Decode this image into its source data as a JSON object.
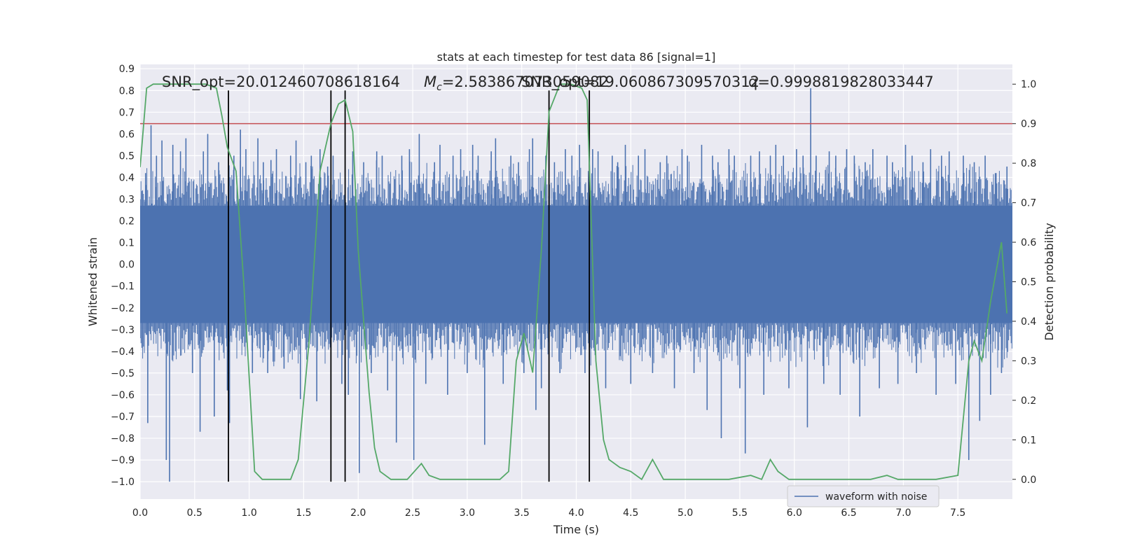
{
  "chart_data": {
    "type": "line",
    "title": "stats at each timestep for test data 86 [signal=1]",
    "xlabel": "Time (s)",
    "ylabel_left": "Whitened strain",
    "ylabel_right": "Detection probability",
    "xlim": [
      0,
      8
    ],
    "ylim_left": [
      -1.08,
      0.92
    ],
    "ylim_right": [
      -0.05,
      1.05
    ],
    "x_ticks": [
      0.0,
      0.5,
      1.0,
      1.5,
      2.0,
      2.5,
      3.0,
      3.5,
      4.0,
      4.5,
      5.0,
      5.5,
      6.0,
      6.5,
      7.0,
      7.5
    ],
    "x_tick_labels": [
      "0.0",
      "0.5",
      "1.0",
      "1.5",
      "2.0",
      "2.5",
      "3.0",
      "3.5",
      "4.0",
      "4.5",
      "5.0",
      "5.5",
      "6.0",
      "6.5",
      "7.0",
      "7.5"
    ],
    "y_left_ticks": [
      0.9,
      0.8,
      0.7,
      0.6,
      0.5,
      0.4,
      0.3,
      0.2,
      0.1,
      0.0,
      -0.1,
      -0.2,
      -0.3,
      -0.4,
      -0.5,
      -0.6,
      -0.7,
      -0.8,
      -0.9,
      -1.0
    ],
    "y_left_tick_labels": [
      "0.9",
      "0.8",
      "0.7",
      "0.6",
      "0.5",
      "0.4",
      "0.3",
      "0.2",
      "0.1",
      "0.0",
      "−0.1",
      "−0.2",
      "−0.3",
      "−0.4",
      "−0.5",
      "−0.6",
      "−0.7",
      "−0.8",
      "−0.9",
      "−1.0"
    ],
    "y_right_ticks": [
      1.0,
      0.9,
      0.8,
      0.7,
      0.6,
      0.5,
      0.4,
      0.3,
      0.2,
      0.1,
      0.0
    ],
    "y_right_tick_labels": [
      "1.0",
      "0.9",
      "0.8",
      "0.7",
      "0.6",
      "0.5",
      "0.4",
      "0.3",
      "0.2",
      "0.1",
      "0.0"
    ],
    "annotations": {
      "snr_opt": "SNR_opt=20.012460708618164",
      "mc": "=2.583867073059082",
      "mc_symbol": "M",
      "mc_subscript": "c",
      "snr_opt2": "SNR_opt=19.060867309570312",
      "q": "q=0.9998819828033447"
    },
    "threshold": {
      "value": 0.9,
      "axis": "right",
      "color": "#c44e52"
    },
    "vertical_lines_x": [
      0.81,
      1.75,
      1.88,
      3.75,
      4.12
    ],
    "waveform": {
      "name": "waveform with noise",
      "color": "#4c72b0",
      "core_band": [
        -0.27,
        0.27
      ],
      "typical_envelope": [
        -0.45,
        0.45
      ],
      "spikes": [
        [
          0.05,
          0.42
        ],
        [
          0.07,
          -0.73
        ],
        [
          0.1,
          0.64
        ],
        [
          0.15,
          0.5
        ],
        [
          0.2,
          0.57
        ],
        [
          0.24,
          -0.9
        ],
        [
          0.27,
          -1.0
        ],
        [
          0.3,
          0.55
        ],
        [
          0.37,
          0.52
        ],
        [
          0.42,
          0.58
        ],
        [
          0.48,
          -0.5
        ],
        [
          0.55,
          -0.77
        ],
        [
          0.58,
          0.52
        ],
        [
          0.62,
          0.6
        ],
        [
          0.68,
          -0.7
        ],
        [
          0.72,
          0.47
        ],
        [
          0.8,
          -0.58
        ],
        [
          0.82,
          -0.73
        ],
        [
          0.86,
          0.5
        ],
        [
          0.92,
          0.62
        ],
        [
          0.97,
          0.53
        ],
        [
          1.03,
          -0.5
        ],
        [
          1.08,
          0.58
        ],
        [
          1.13,
          0.47
        ],
        [
          1.17,
          -0.5
        ],
        [
          1.2,
          0.48
        ],
        [
          1.25,
          0.53
        ],
        [
          1.32,
          -0.48
        ],
        [
          1.38,
          0.5
        ],
        [
          1.43,
          0.57
        ],
        [
          1.47,
          -0.62
        ],
        [
          1.52,
          0.47
        ],
        [
          1.57,
          0.5
        ],
        [
          1.62,
          -0.63
        ],
        [
          1.65,
          0.53
        ],
        [
          1.72,
          0.45
        ],
        [
          1.77,
          0.5
        ],
        [
          1.85,
          -0.55
        ],
        [
          1.91,
          -0.6
        ],
        [
          1.95,
          0.52
        ],
        [
          2.01,
          -0.96
        ],
        [
          2.05,
          0.47
        ],
        [
          2.12,
          -0.5
        ],
        [
          2.17,
          0.52
        ],
        [
          2.22,
          0.5
        ],
        [
          2.27,
          -0.58
        ],
        [
          2.35,
          -0.82
        ],
        [
          2.4,
          0.5
        ],
        [
          2.47,
          0.53
        ],
        [
          2.51,
          -0.9
        ],
        [
          2.56,
          0.6
        ],
        [
          2.62,
          -0.55
        ],
        [
          2.7,
          0.47
        ],
        [
          2.75,
          0.55
        ],
        [
          2.82,
          -0.6
        ],
        [
          2.87,
          0.5
        ],
        [
          2.94,
          0.53
        ],
        [
          3.0,
          -0.5
        ],
        [
          3.05,
          0.55
        ],
        [
          3.1,
          0.5
        ],
        [
          3.16,
          -0.83
        ],
        [
          3.22,
          0.52
        ],
        [
          3.26,
          0.58
        ],
        [
          3.33,
          -0.55
        ],
        [
          3.4,
          0.5
        ],
        [
          3.47,
          0.47
        ],
        [
          3.52,
          -0.5
        ],
        [
          3.57,
          0.53
        ],
        [
          3.6,
          0.58
        ],
        [
          3.63,
          -0.67
        ],
        [
          3.68,
          -0.57
        ],
        [
          3.72,
          0.5
        ],
        [
          3.8,
          0.47
        ],
        [
          3.85,
          -0.5
        ],
        [
          3.9,
          0.53
        ],
        [
          3.96,
          0.5
        ],
        [
          4.03,
          0.55
        ],
        [
          4.08,
          -0.5
        ],
        [
          4.15,
          0.53
        ],
        [
          4.2,
          0.52
        ],
        [
          4.27,
          -0.57
        ],
        [
          4.33,
          0.5
        ],
        [
          4.38,
          0.47
        ],
        [
          4.45,
          0.55
        ],
        [
          4.5,
          -0.55
        ],
        [
          4.57,
          0.5
        ],
        [
          4.63,
          0.53
        ],
        [
          4.7,
          -0.5
        ],
        [
          4.77,
          0.47
        ],
        [
          4.83,
          0.5
        ],
        [
          4.9,
          -0.57
        ],
        [
          4.97,
          0.53
        ],
        [
          5.02,
          0.5
        ],
        [
          5.08,
          -0.5
        ],
        [
          5.15,
          0.55
        ],
        [
          5.2,
          -0.67
        ],
        [
          5.25,
          0.5
        ],
        [
          5.3,
          0.47
        ],
        [
          5.33,
          -0.8
        ],
        [
          5.4,
          0.53
        ],
        [
          5.45,
          0.5
        ],
        [
          5.5,
          -0.57
        ],
        [
          5.55,
          -0.87
        ],
        [
          5.6,
          0.5
        ],
        [
          5.68,
          0.52
        ],
        [
          5.72,
          -0.6
        ],
        [
          5.78,
          0.5
        ],
        [
          5.83,
          0.55
        ],
        [
          5.9,
          0.5
        ],
        [
          5.95,
          -0.57
        ],
        [
          6.02,
          0.53
        ],
        [
          6.08,
          0.5
        ],
        [
          6.12,
          -0.75
        ],
        [
          6.15,
          0.81
        ],
        [
          6.2,
          0.5
        ],
        [
          6.27,
          -0.55
        ],
        [
          6.32,
          0.52
        ],
        [
          6.38,
          0.5
        ],
        [
          6.42,
          -0.6
        ],
        [
          6.48,
          0.53
        ],
        [
          6.55,
          0.5
        ],
        [
          6.6,
          -0.7
        ],
        [
          6.65,
          0.47
        ],
        [
          6.72,
          0.53
        ],
        [
          6.78,
          -0.57
        ],
        [
          6.85,
          0.5
        ],
        [
          6.9,
          0.47
        ],
        [
          6.95,
          -0.55
        ],
        [
          7.02,
          0.55
        ],
        [
          7.08,
          0.5
        ],
        [
          7.12,
          -0.5
        ],
        [
          7.18,
          0.47
        ],
        [
          7.25,
          0.53
        ],
        [
          7.3,
          -0.6
        ],
        [
          7.35,
          0.5
        ],
        [
          7.42,
          0.52
        ],
        [
          7.48,
          -0.55
        ],
        [
          7.55,
          0.5
        ],
        [
          7.6,
          -0.9
        ],
        [
          7.65,
          0.47
        ],
        [
          7.7,
          -0.72
        ],
        [
          7.75,
          0.5
        ],
        [
          7.8,
          -0.6
        ],
        [
          7.85,
          0.42
        ],
        [
          7.9,
          -0.5
        ],
        [
          7.95,
          0.45
        ]
      ]
    },
    "probability": {
      "color": "#55a868",
      "x": [
        0.0,
        0.06,
        0.12,
        0.2,
        0.3,
        0.4,
        0.5,
        0.6,
        0.7,
        0.75,
        0.8,
        0.88,
        0.95,
        1.05,
        1.12,
        1.2,
        1.3,
        1.38,
        1.45,
        1.55,
        1.65,
        1.75,
        1.82,
        1.88,
        1.95,
        2.0,
        2.1,
        2.15,
        2.2,
        2.3,
        2.45,
        2.58,
        2.65,
        2.75,
        2.9,
        3.1,
        3.3,
        3.38,
        3.45,
        3.52,
        3.6,
        3.68,
        3.75,
        3.85,
        3.95,
        4.05,
        4.1,
        4.18,
        4.25,
        4.3,
        4.4,
        4.5,
        4.6,
        4.7,
        4.8,
        4.9,
        5.0,
        5.2,
        5.4,
        5.6,
        5.7,
        5.78,
        5.85,
        5.95,
        6.1,
        6.3,
        6.5,
        6.7,
        6.85,
        6.95,
        7.1,
        7.3,
        7.5,
        7.6,
        7.65,
        7.72,
        7.8,
        7.9,
        7.95
      ],
      "values": [
        0.79,
        0.99,
        1.0,
        1.0,
        1.0,
        1.0,
        1.0,
        1.0,
        0.99,
        0.92,
        0.84,
        0.78,
        0.5,
        0.02,
        0.0,
        0.0,
        0.0,
        0.0,
        0.05,
        0.35,
        0.78,
        0.9,
        0.95,
        0.96,
        0.88,
        0.58,
        0.22,
        0.08,
        0.02,
        0.0,
        0.0,
        0.04,
        0.01,
        0.0,
        0.0,
        0.0,
        0.0,
        0.02,
        0.3,
        0.37,
        0.27,
        0.58,
        0.93,
        1.0,
        1.0,
        0.99,
        0.96,
        0.3,
        0.1,
        0.05,
        0.03,
        0.02,
        0.0,
        0.05,
        0.0,
        0.0,
        0.0,
        0.0,
        0.0,
        0.01,
        0.0,
        0.05,
        0.02,
        0.0,
        0.0,
        0.0,
        0.0,
        0.0,
        0.01,
        0.0,
        0.0,
        0.0,
        0.01,
        0.3,
        0.35,
        0.3,
        0.45,
        0.6,
        0.42
      ]
    },
    "legend": {
      "entries": [
        "waveform with noise"
      ],
      "placement": "lower-right"
    },
    "grid": true,
    "colors": {
      "plot_bg": "#eaeaf2",
      "grid": "#ffffff",
      "text": "#262626",
      "vline": "#000000"
    }
  }
}
